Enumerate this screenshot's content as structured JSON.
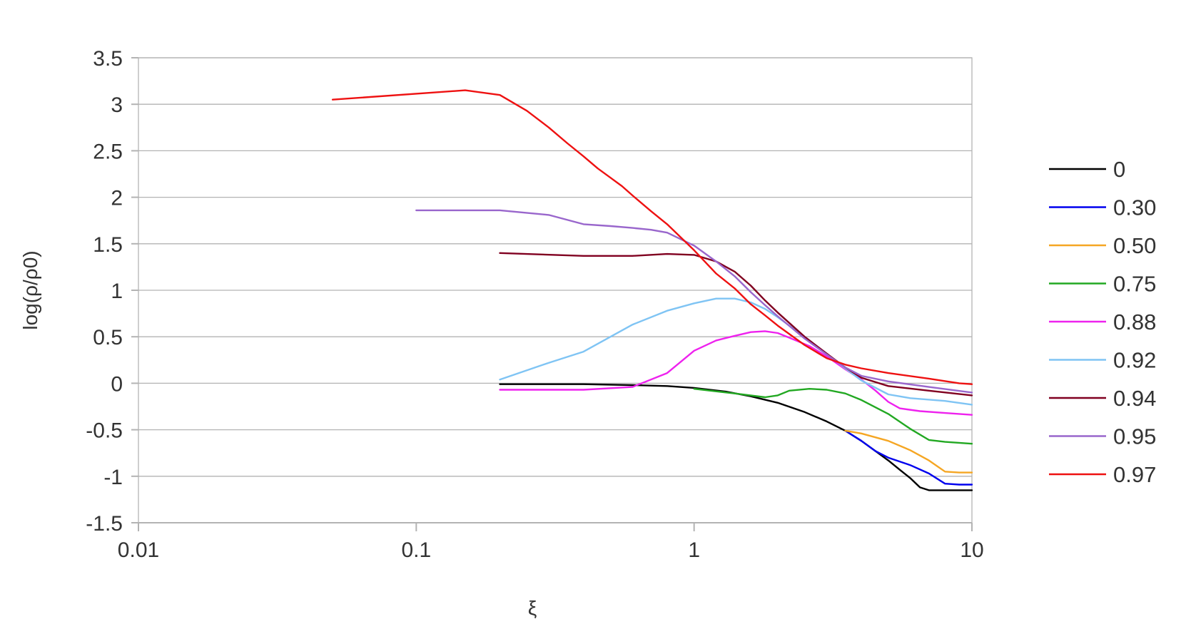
{
  "chart_data": {
    "type": "line",
    "title": "",
    "xlabel": "ξ",
    "ylabel": "log(ρ/ρ0)",
    "xscale": "log",
    "xlim": [
      0.01,
      10
    ],
    "ylim": [
      -1.5,
      3.5
    ],
    "xticks": [
      "0.01",
      "0.1",
      "1",
      "10"
    ],
    "yticks": [
      "3.5",
      "3",
      "2.5",
      "2",
      "1.5",
      "1",
      "0.5",
      "0",
      "-0.5",
      "-1",
      "-1.5"
    ],
    "grid": "horizontal",
    "legend_position": "right",
    "series": [
      {
        "name": "0",
        "color": "#000000",
        "points": [
          [
            0.2,
            -0.01
          ],
          [
            0.4,
            -0.01
          ],
          [
            0.6,
            -0.02
          ],
          [
            0.8,
            -0.03
          ],
          [
            1.0,
            -0.05
          ],
          [
            1.3,
            -0.09
          ],
          [
            1.6,
            -0.14
          ],
          [
            2.0,
            -0.21
          ],
          [
            2.5,
            -0.31
          ],
          [
            3.0,
            -0.41
          ],
          [
            3.5,
            -0.51
          ],
          [
            4.0,
            -0.62
          ],
          [
            4.5,
            -0.73
          ],
          [
            5.0,
            -0.83
          ],
          [
            5.5,
            -0.93
          ],
          [
            6.0,
            -1.02
          ],
          [
            6.5,
            -1.12
          ],
          [
            7.0,
            -1.15
          ],
          [
            8.0,
            -1.15
          ],
          [
            10.0,
            -1.15
          ]
        ]
      },
      {
        "name": "0.30",
        "color": "#0000ee",
        "points": [
          [
            3.5,
            -0.51
          ],
          [
            4.0,
            -0.62
          ],
          [
            4.5,
            -0.73
          ],
          [
            5.0,
            -0.8
          ],
          [
            6.0,
            -0.88
          ],
          [
            7.0,
            -0.97
          ],
          [
            8.0,
            -1.08
          ],
          [
            9.0,
            -1.09
          ],
          [
            10.0,
            -1.09
          ]
        ]
      },
      {
        "name": "0.50",
        "color": "#f5a623",
        "points": [
          [
            3.5,
            -0.51
          ],
          [
            4.0,
            -0.54
          ],
          [
            5.0,
            -0.62
          ],
          [
            6.0,
            -0.72
          ],
          [
            7.0,
            -0.83
          ],
          [
            8.0,
            -0.95
          ],
          [
            9.0,
            -0.96
          ],
          [
            10.0,
            -0.96
          ]
        ]
      },
      {
        "name": "0.75",
        "color": "#22a822",
        "points": [
          [
            1.0,
            -0.06
          ],
          [
            1.4,
            -0.11
          ],
          [
            1.8,
            -0.15
          ],
          [
            2.0,
            -0.13
          ],
          [
            2.2,
            -0.08
          ],
          [
            2.6,
            -0.06
          ],
          [
            3.0,
            -0.07
          ],
          [
            3.5,
            -0.11
          ],
          [
            4.0,
            -0.18
          ],
          [
            5.0,
            -0.33
          ],
          [
            6.0,
            -0.49
          ],
          [
            7.0,
            -0.61
          ],
          [
            8.0,
            -0.63
          ],
          [
            10.0,
            -0.65
          ]
        ]
      },
      {
        "name": "0.88",
        "color": "#ee22ee",
        "points": [
          [
            0.2,
            -0.07
          ],
          [
            0.4,
            -0.07
          ],
          [
            0.6,
            -0.04
          ],
          [
            0.8,
            0.11
          ],
          [
            1.0,
            0.35
          ],
          [
            1.2,
            0.46
          ],
          [
            1.4,
            0.51
          ],
          [
            1.6,
            0.55
          ],
          [
            1.8,
            0.56
          ],
          [
            2.0,
            0.54
          ],
          [
            2.2,
            0.49
          ],
          [
            2.6,
            0.4
          ],
          [
            3.0,
            0.29
          ],
          [
            3.5,
            0.15
          ],
          [
            4.0,
            0.04
          ],
          [
            4.5,
            -0.08
          ],
          [
            5.0,
            -0.2
          ],
          [
            5.5,
            -0.27
          ],
          [
            6.5,
            -0.3
          ],
          [
            8.0,
            -0.32
          ],
          [
            10.0,
            -0.34
          ]
        ]
      },
      {
        "name": "0.92",
        "color": "#7fc4f4",
        "points": [
          [
            0.2,
            0.04
          ],
          [
            0.3,
            0.22
          ],
          [
            0.4,
            0.34
          ],
          [
            0.6,
            0.63
          ],
          [
            0.8,
            0.78
          ],
          [
            1.0,
            0.86
          ],
          [
            1.2,
            0.91
          ],
          [
            1.4,
            0.91
          ],
          [
            1.6,
            0.87
          ],
          [
            1.8,
            0.8
          ],
          [
            2.0,
            0.71
          ],
          [
            2.5,
            0.5
          ],
          [
            3.0,
            0.32
          ],
          [
            3.5,
            0.16
          ],
          [
            4.0,
            0.03
          ],
          [
            5.0,
            -0.12
          ],
          [
            6.0,
            -0.16
          ],
          [
            8.0,
            -0.19
          ],
          [
            10.0,
            -0.23
          ]
        ]
      },
      {
        "name": "0.94",
        "color": "#800020",
        "points": [
          [
            0.2,
            1.4
          ],
          [
            0.4,
            1.37
          ],
          [
            0.6,
            1.37
          ],
          [
            0.8,
            1.39
          ],
          [
            1.0,
            1.38
          ],
          [
            1.2,
            1.31
          ],
          [
            1.4,
            1.2
          ],
          [
            1.6,
            1.05
          ],
          [
            1.8,
            0.89
          ],
          [
            2.0,
            0.76
          ],
          [
            2.5,
            0.5
          ],
          [
            3.0,
            0.32
          ],
          [
            3.5,
            0.17
          ],
          [
            4.0,
            0.06
          ],
          [
            5.0,
            -0.03
          ],
          [
            7.0,
            -0.08
          ],
          [
            10.0,
            -0.13
          ]
        ]
      },
      {
        "name": "0.95",
        "color": "#9966cc",
        "points": [
          [
            0.1,
            1.86
          ],
          [
            0.2,
            1.86
          ],
          [
            0.3,
            1.81
          ],
          [
            0.4,
            1.71
          ],
          [
            0.5,
            1.69
          ],
          [
            0.6,
            1.67
          ],
          [
            0.7,
            1.65
          ],
          [
            0.8,
            1.62
          ],
          [
            1.0,
            1.48
          ],
          [
            1.2,
            1.31
          ],
          [
            1.4,
            1.15
          ],
          [
            1.6,
            0.98
          ],
          [
            1.8,
            0.84
          ],
          [
            2.0,
            0.72
          ],
          [
            2.5,
            0.48
          ],
          [
            3.0,
            0.31
          ],
          [
            3.5,
            0.17
          ],
          [
            4.0,
            0.08
          ],
          [
            5.0,
            0.02
          ],
          [
            7.0,
            -0.04
          ],
          [
            10.0,
            -0.1
          ]
        ]
      },
      {
        "name": "0.97",
        "color": "#ee1111",
        "points": [
          [
            0.05,
            3.05
          ],
          [
            0.15,
            3.15
          ],
          [
            0.2,
            3.1
          ],
          [
            0.25,
            2.93
          ],
          [
            0.3,
            2.75
          ],
          [
            0.35,
            2.58
          ],
          [
            0.4,
            2.44
          ],
          [
            0.45,
            2.31
          ],
          [
            0.5,
            2.21
          ],
          [
            0.55,
            2.12
          ],
          [
            0.6,
            2.02
          ],
          [
            0.7,
            1.85
          ],
          [
            0.8,
            1.71
          ],
          [
            1.0,
            1.43
          ],
          [
            1.2,
            1.18
          ],
          [
            1.4,
            1.02
          ],
          [
            1.6,
            0.85
          ],
          [
            1.8,
            0.73
          ],
          [
            2.0,
            0.62
          ],
          [
            2.5,
            0.41
          ],
          [
            3.0,
            0.27
          ],
          [
            3.5,
            0.2
          ],
          [
            4.0,
            0.16
          ],
          [
            5.0,
            0.11
          ],
          [
            7.0,
            0.05
          ],
          [
            9.0,
            0.0
          ],
          [
            10.0,
            -0.01
          ]
        ]
      }
    ]
  }
}
